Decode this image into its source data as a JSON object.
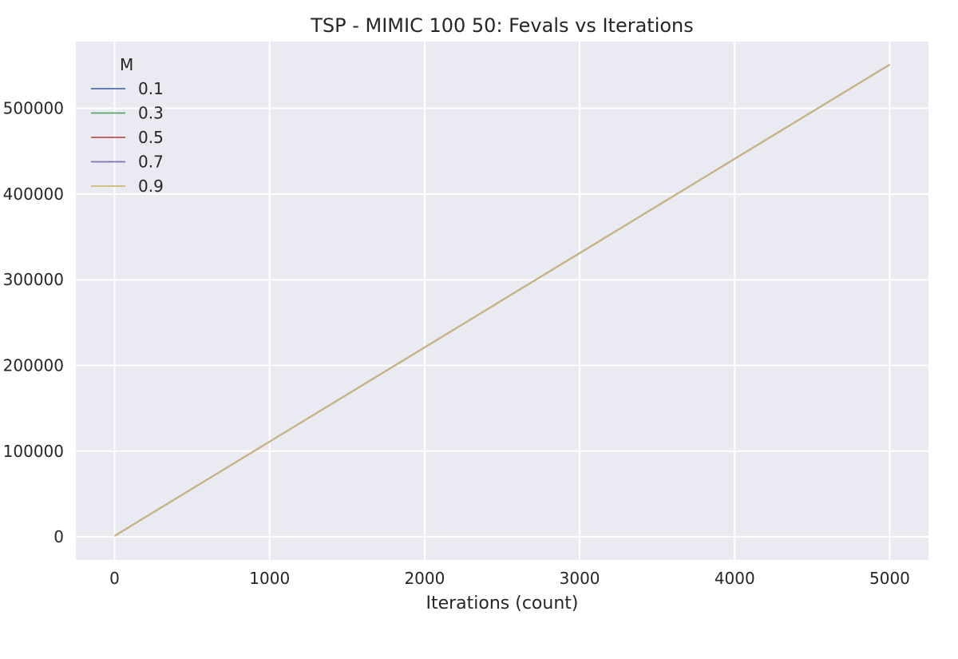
{
  "chart_data": {
    "type": "line",
    "title": "TSP - MIMIC 100 50: Fevals vs Iterations",
    "xlabel": "Iterations (count)",
    "ylabel": "",
    "xlim": [
      -250,
      5250
    ],
    "ylim": [
      -27000,
      578000
    ],
    "xticks": [
      0,
      1000,
      2000,
      3000,
      4000,
      5000
    ],
    "yticks": [
      0,
      100000,
      200000,
      300000,
      400000,
      500000
    ],
    "grid": true,
    "legend": {
      "title": "M",
      "placement": "upper-left"
    },
    "series": [
      {
        "name": "0.1",
        "color": "#4c72b0",
        "x": [
          0,
          5000
        ],
        "y": [
          1100,
          551100
        ]
      },
      {
        "name": "0.3",
        "color": "#55a868",
        "x": [
          0,
          5000
        ],
        "y": [
          1100,
          551100
        ]
      },
      {
        "name": "0.5",
        "color": "#c44e52",
        "x": [
          0,
          5000
        ],
        "y": [
          1100,
          551100
        ]
      },
      {
        "name": "0.7",
        "color": "#8172b2",
        "x": [
          0,
          5000
        ],
        "y": [
          1100,
          551100
        ]
      },
      {
        "name": "0.9",
        "color": "#ccb974",
        "x": [
          0,
          5000
        ],
        "y": [
          1100,
          551100
        ]
      }
    ]
  }
}
